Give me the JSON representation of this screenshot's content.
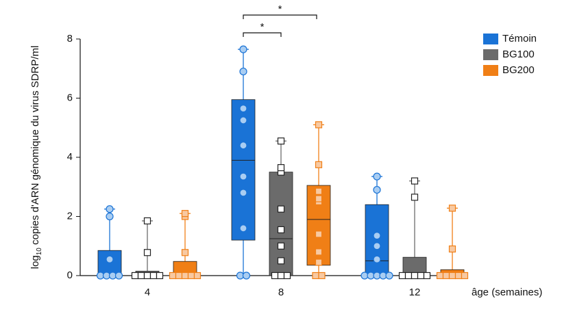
{
  "chart_data": {
    "type": "box",
    "ylabel": {
      "prefix": "log",
      "sub": "10",
      "text": " copies d'ARN génomique du virus SDRP/ml"
    },
    "xlabel": "âge (semaines)",
    "categories": [
      "4",
      "8",
      "12"
    ],
    "ylim": [
      0,
      8
    ],
    "yticks": [
      0,
      2,
      4,
      6,
      8
    ],
    "legend": "top-right",
    "annotations": [
      "*",
      "*"
    ],
    "series": [
      {
        "name": "Témoin",
        "color": "#1a73d6",
        "point_color": "#a9cdf2",
        "marker": "circle",
        "boxes": [
          {
            "min": 0,
            "q1": 0,
            "median": 0,
            "q3": 0.85,
            "max": 2.25
          },
          {
            "min": 0,
            "q1": 1.2,
            "median": 3.9,
            "q3": 5.95,
            "max": 7.65
          },
          {
            "min": 0,
            "q1": 0,
            "median": 0.5,
            "q3": 2.4,
            "max": 3.35
          }
        ],
        "points": [
          [
            0,
            0,
            0,
            0,
            0.55,
            2.0,
            2.25
          ],
          [
            0,
            0,
            1.6,
            2.8,
            3.35,
            4.4,
            5.25,
            5.65,
            6.9,
            7.65
          ],
          [
            0,
            0,
            0,
            0,
            0,
            0.55,
            1.0,
            1.35,
            2.9,
            3.35
          ]
        ]
      },
      {
        "name": "BG100",
        "color": "#6b6b6b",
        "point_color": "#ffffff",
        "marker": "square",
        "boxes": [
          {
            "min": 0,
            "q1": 0,
            "median": 0.05,
            "q3": 0.15,
            "max": 1.85
          },
          {
            "min": 0,
            "q1": 0,
            "median": 1.25,
            "q3": 3.5,
            "max": 4.55
          },
          {
            "min": 0,
            "q1": 0,
            "median": 0,
            "q3": 0.62,
            "max": 3.2
          }
        ],
        "points": [
          [
            0,
            0,
            0,
            0,
            0,
            0.78,
            1.85
          ],
          [
            0,
            0,
            0,
            0.5,
            1.0,
            1.55,
            2.25,
            3.5,
            3.65,
            4.55
          ],
          [
            0,
            0,
            0,
            0,
            0,
            2.65,
            3.2
          ]
        ]
      },
      {
        "name": "BG200",
        "color": "#f07f16",
        "point_color": "#f8c9a1",
        "marker": "square",
        "boxes": [
          {
            "min": 0,
            "q1": 0,
            "median": 0,
            "q3": 0.48,
            "max": 2.1
          },
          {
            "min": 0,
            "q1": 0.35,
            "median": 1.9,
            "q3": 3.05,
            "max": 5.1
          },
          {
            "min": 0,
            "q1": 0,
            "median": 0,
            "q3": 0.2,
            "max": 2.28
          }
        ],
        "points": [
          [
            0,
            0,
            0,
            0,
            0,
            0.78,
            2.0,
            2.1
          ],
          [
            0,
            0,
            0.45,
            0.8,
            1.4,
            2.5,
            2.6,
            2.85,
            3.75,
            5.1
          ],
          [
            0,
            0,
            0,
            0,
            0,
            0.9,
            2.28
          ]
        ]
      }
    ]
  }
}
